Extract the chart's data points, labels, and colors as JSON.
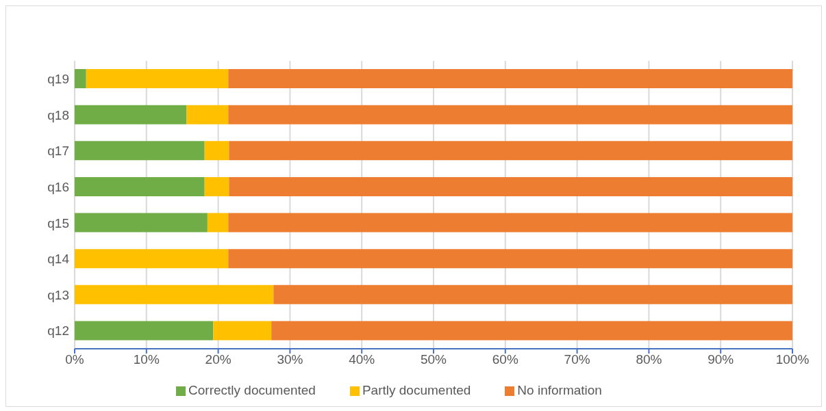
{
  "chart_data": {
    "type": "bar",
    "orientation": "horizontal",
    "stacked": true,
    "categories": [
      "q19",
      "q18",
      "q17",
      "q16",
      "q15",
      "q14",
      "q13",
      "q12"
    ],
    "series": [
      {
        "name": "Correctly documented",
        "color": "#70ad47",
        "values": [
          1.6,
          15.6,
          18.1,
          18.1,
          18.5,
          0,
          0,
          19.3
        ]
      },
      {
        "name": "Partly documented",
        "color": "#ffc000",
        "values": [
          19.8,
          5.8,
          3.4,
          3.4,
          2.9,
          21.4,
          27.7,
          8.1
        ]
      },
      {
        "name": "No information",
        "color": "#ed7d31",
        "values": [
          78.6,
          78.6,
          78.5,
          78.5,
          78.6,
          78.6,
          72.3,
          72.6
        ]
      }
    ],
    "xlim": [
      0,
      100
    ],
    "xticks": [
      {
        "value": 0,
        "label": "0%"
      },
      {
        "value": 10,
        "label": "10%"
      },
      {
        "value": 20,
        "label": "20%"
      },
      {
        "value": 30,
        "label": "30%"
      },
      {
        "value": 40,
        "label": "40%"
      },
      {
        "value": 50,
        "label": "50%"
      },
      {
        "value": 60,
        "label": "60%"
      },
      {
        "value": 70,
        "label": "70%"
      },
      {
        "value": 80,
        "label": "80%"
      },
      {
        "value": 90,
        "label": "90%"
      },
      {
        "value": 100,
        "label": "100%"
      }
    ],
    "grid": "x",
    "legend": "bottom"
  }
}
